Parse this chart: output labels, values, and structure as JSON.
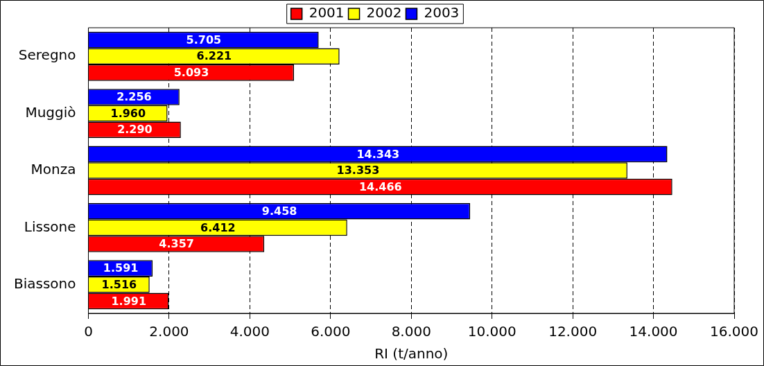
{
  "chart_data": {
    "type": "bar",
    "orientation": "horizontal",
    "xlabel": "RI (t/anno)",
    "categories": [
      "Seregno",
      "Muggiò",
      "Monza",
      "Lissone",
      "Biassono"
    ],
    "series": [
      {
        "name": "2001",
        "color": "#ff0000",
        "values": [
          5093,
          2290,
          14466,
          4357,
          1991
        ],
        "value_labels": [
          "5.093",
          "2.290",
          "14.466",
          "4.357",
          "1.991"
        ]
      },
      {
        "name": "2002",
        "color": "#ffff00",
        "values": [
          6221,
          1960,
          13353,
          6412,
          1516
        ],
        "value_labels": [
          "6.221",
          "1.960",
          "13.353",
          "6.412",
          "1.516"
        ]
      },
      {
        "name": "2003",
        "color": "#0000ff",
        "values": [
          5705,
          2256,
          14343,
          9458,
          1591
        ],
        "value_labels": [
          "5.705",
          "2.256",
          "14.343",
          "9.458",
          "1.591"
        ]
      }
    ],
    "xlim": [
      0,
      16000
    ],
    "xticks": [
      0,
      {
        "value": 2000,
        "label": "2.000"
      },
      {
        "value": 4000,
        "label": "4.000"
      },
      {
        "value": 6000,
        "label": "6.000"
      },
      {
        "value": 8000,
        "label": "8.000"
      },
      {
        "value": 10000,
        "label": "10.000"
      },
      {
        "value": 12000,
        "label": "12.000"
      },
      {
        "value": 14000,
        "label": "14.000"
      },
      {
        "value": 16000,
        "label": "16.000"
      }
    ],
    "grid": "x",
    "legend": "top"
  }
}
